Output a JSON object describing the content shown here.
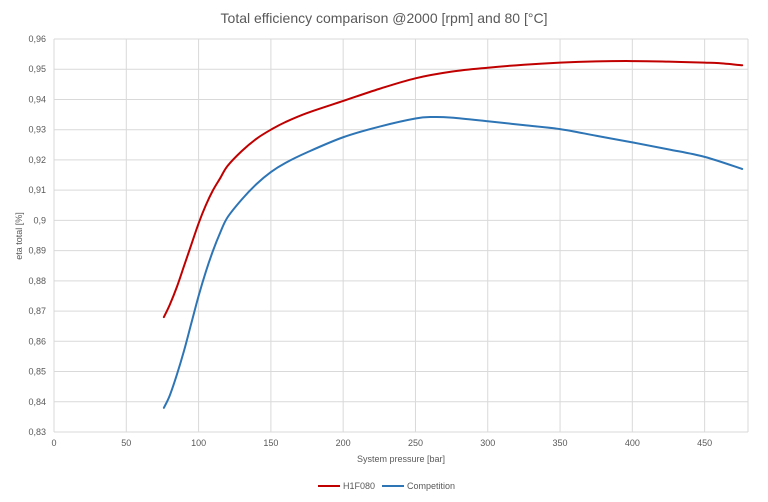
{
  "chart_data": {
    "type": "line",
    "title": "Total efficiency comparison @2000 [rpm] and 80 [°C]",
    "xlabel": "System pressure [bar]",
    "ylabel": "eta total [%]",
    "xlim": [
      0,
      480
    ],
    "ylim": [
      0.83,
      0.96
    ],
    "x_ticks": [
      0,
      50,
      100,
      150,
      200,
      250,
      300,
      350,
      400,
      450
    ],
    "x_tick_labels": [
      "0",
      "50",
      "100",
      "150",
      "200",
      "250",
      "300",
      "350",
      "400",
      "450"
    ],
    "y_ticks": [
      0.83,
      0.84,
      0.85,
      0.86,
      0.87,
      0.88,
      0.89,
      0.9,
      0.91,
      0.92,
      0.93,
      0.94,
      0.95,
      0.96
    ],
    "y_tick_labels": [
      "0,83",
      "0,84",
      "0,85",
      "0,86",
      "0,87",
      "0,88",
      "0,89",
      "0,9",
      "0,91",
      "0,92",
      "0,93",
      "0,94",
      "0,95",
      "0,96"
    ],
    "grid": true,
    "legend_position": "bottom",
    "series": [
      {
        "name": "H1F080",
        "color": "#C00000",
        "points": [
          [
            76,
            0.868
          ],
          [
            80,
            0.872
          ],
          [
            85,
            0.878
          ],
          [
            90,
            0.885
          ],
          [
            95,
            0.892
          ],
          [
            100,
            0.899
          ],
          [
            105,
            0.905
          ],
          [
            110,
            0.91
          ],
          [
            115,
            0.914
          ],
          [
            120,
            0.918
          ],
          [
            130,
            0.923
          ],
          [
            140,
            0.927
          ],
          [
            150,
            0.93
          ],
          [
            160,
            0.9325
          ],
          [
            175,
            0.9355
          ],
          [
            200,
            0.9395
          ],
          [
            225,
            0.9435
          ],
          [
            250,
            0.947
          ],
          [
            275,
            0.9492
          ],
          [
            300,
            0.9505
          ],
          [
            325,
            0.9515
          ],
          [
            350,
            0.9522
          ],
          [
            375,
            0.9526
          ],
          [
            400,
            0.9527
          ],
          [
            425,
            0.9525
          ],
          [
            450,
            0.9522
          ],
          [
            460,
            0.952
          ],
          [
            476,
            0.9513
          ]
        ]
      },
      {
        "name": "Competition",
        "color": "#2E75B6",
        "points": [
          [
            76,
            0.838
          ],
          [
            80,
            0.842
          ],
          [
            85,
            0.849
          ],
          [
            90,
            0.857
          ],
          [
            95,
            0.866
          ],
          [
            100,
            0.875
          ],
          [
            105,
            0.883
          ],
          [
            110,
            0.89
          ],
          [
            115,
            0.896
          ],
          [
            120,
            0.901
          ],
          [
            130,
            0.907
          ],
          [
            140,
            0.912
          ],
          [
            150,
            0.916
          ],
          [
            160,
            0.919
          ],
          [
            175,
            0.9225
          ],
          [
            200,
            0.9275
          ],
          [
            225,
            0.931
          ],
          [
            250,
            0.9337
          ],
          [
            262,
            0.9342
          ],
          [
            275,
            0.934
          ],
          [
            300,
            0.9328
          ],
          [
            325,
            0.9315
          ],
          [
            350,
            0.9302
          ],
          [
            375,
            0.928
          ],
          [
            400,
            0.9258
          ],
          [
            425,
            0.9235
          ],
          [
            450,
            0.921
          ],
          [
            476,
            0.917
          ]
        ]
      }
    ]
  }
}
